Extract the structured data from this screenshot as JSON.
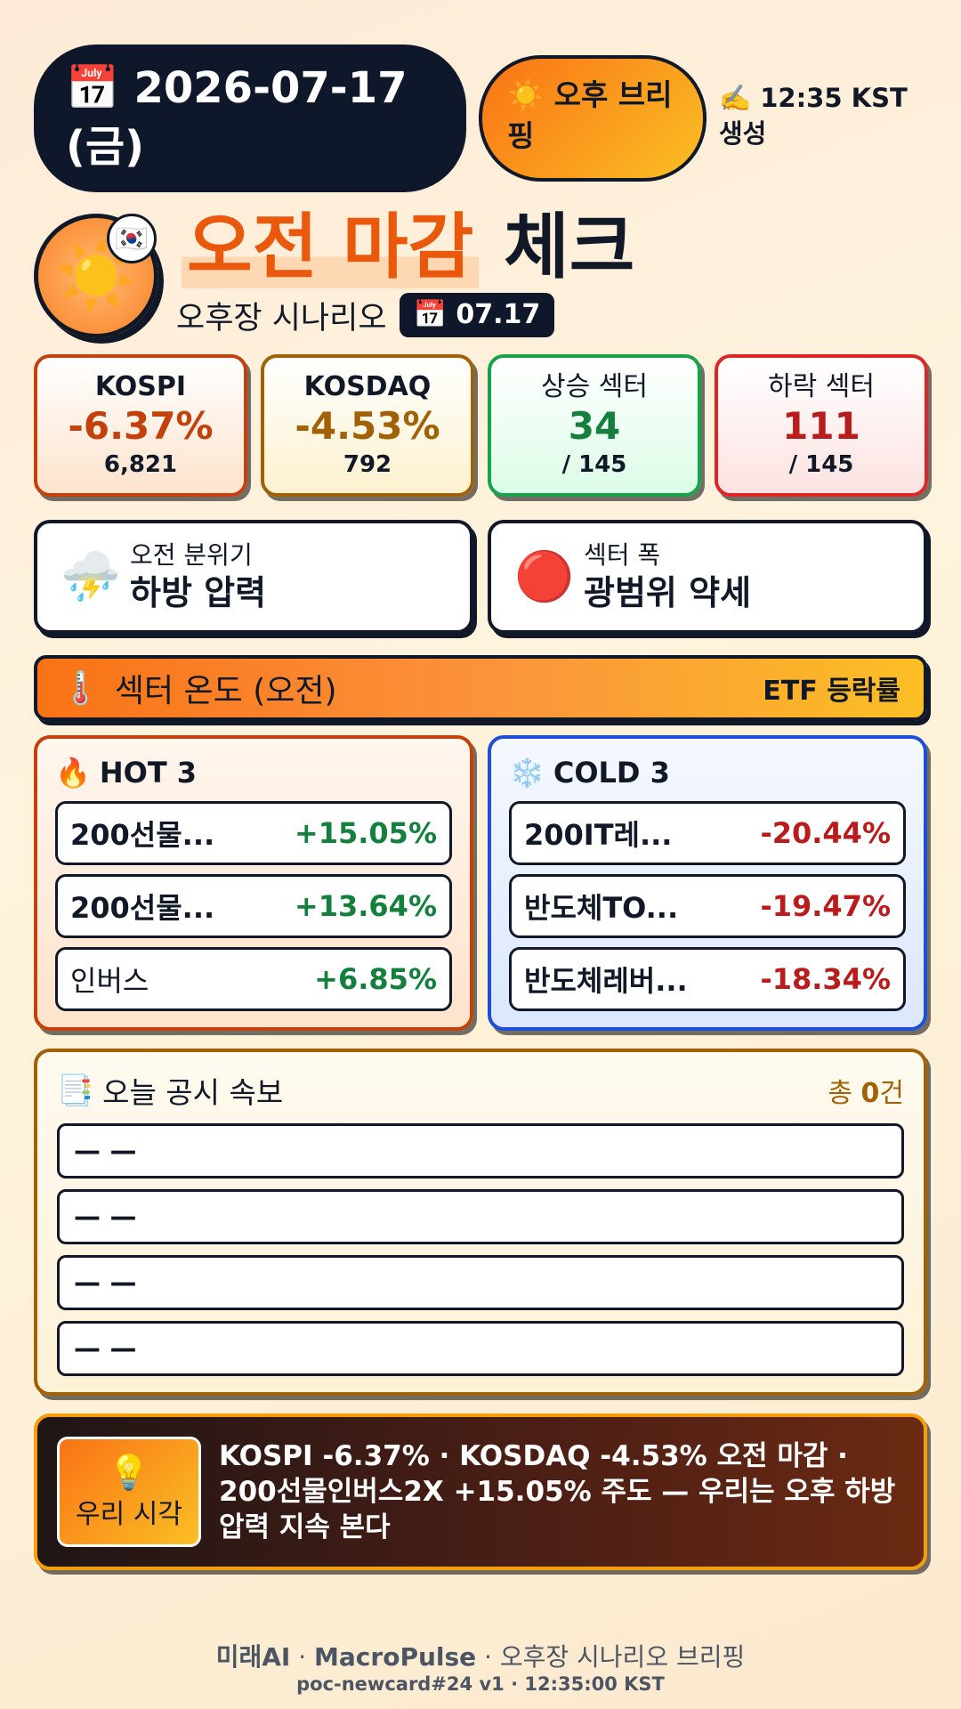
{
  "header": {
    "date_icon": "📅",
    "date_line1": "2026-07-17",
    "date_line2": "(금)",
    "brief_icon": "☀️",
    "brief_label": "오후 브리핑",
    "gen_icon": "✍️",
    "gen_time": "12:35 KST",
    "gen_label": "생성"
  },
  "hero": {
    "sun_icon": "☀️",
    "flag_icon": "🇰🇷",
    "title_accent": "오전 마감",
    "title_rest": "체크",
    "subtitle": "오후장 시나리오",
    "chip_icon": "📅",
    "chip_date": "07.17"
  },
  "stats": {
    "kospi": {
      "name": "KOSPI",
      "value": "-6.37%",
      "sub": "6,821"
    },
    "kosdaq": {
      "name": "KOSDAQ",
      "value": "-4.53%",
      "sub": "792"
    },
    "up": {
      "name": "상승 섹터",
      "value": "34",
      "sub": "/ 145"
    },
    "down": {
      "name": "하락 섹터",
      "value": "111",
      "sub": "/ 145"
    }
  },
  "mood": {
    "left": {
      "icon": "⛈️",
      "small": "오전 분위기",
      "big": "하방 압력"
    },
    "right": {
      "icon": "🔴",
      "small": "섹터 폭",
      "big": "광범위 약세"
    }
  },
  "temperature": {
    "icon": "🌡️",
    "title": "섹터 온도 (오전)",
    "right": "ETF 등락률"
  },
  "hot": {
    "icon": "🔥",
    "title": "HOT 3",
    "items": [
      {
        "name": "200선물...",
        "value": "+15.05%"
      },
      {
        "name": "200선물...",
        "value": "+13.64%"
      },
      {
        "name": "인버스",
        "value": "+6.85%"
      }
    ]
  },
  "cold": {
    "icon": "❄️",
    "title": "COLD 3",
    "items": [
      {
        "name": "200IT레...",
        "value": "-20.44%"
      },
      {
        "name": "반도체TO...",
        "value": "-19.47%"
      },
      {
        "name": "반도체레버...",
        "value": "-18.34%"
      }
    ]
  },
  "disclosure": {
    "icon": "📑",
    "title": "오늘 공시 속보",
    "count_prefix": "총 ",
    "count_value": "0",
    "count_suffix": "건",
    "rows": [
      "— —",
      "— —",
      "— —",
      "— —"
    ]
  },
  "insight": {
    "icon": "💡",
    "label": "우리 시각",
    "text": "KOSPI -6.37% · KOSDAQ -4.53% 오전 마감 · 200선물인버스2X +15.05% 주도 — 우리는 오후 하방 압력 지속 본다"
  },
  "footer": {
    "line1_a": "미래AI",
    "line1_sep1": " · ",
    "line1_b": "MacroPulse",
    "line1_sep2": " · ",
    "line1_c": "오후장 시나리오 브리핑",
    "line2": "poc-newcard#24 v1 · 12:35:00 KST"
  }
}
